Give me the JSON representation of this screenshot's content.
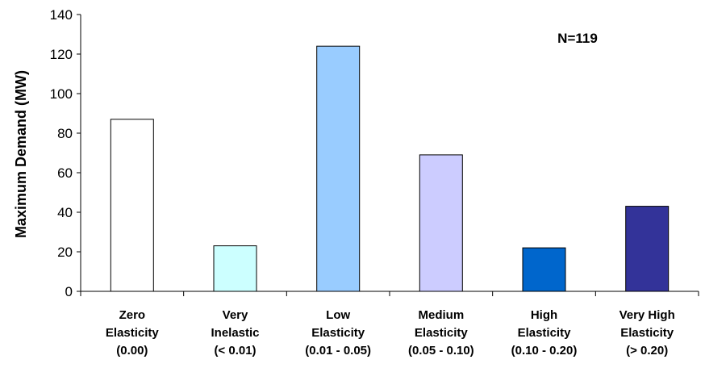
{
  "chart_data": {
    "type": "bar",
    "categories": [
      [
        "Zero",
        "Elasticity",
        "(0.00)"
      ],
      [
        "Very",
        "Inelastic",
        "(< 0.01)"
      ],
      [
        "Low",
        "Elasticity",
        "(0.01 - 0.05)"
      ],
      [
        "Medium",
        "Elasticity",
        "(0.05 - 0.10)"
      ],
      [
        "High",
        "Elasticity",
        "(0.10 - 0.20)"
      ],
      [
        "Very High",
        "Elasticity",
        "(> 0.20)"
      ]
    ],
    "values": [
      87,
      23,
      124,
      69,
      22,
      43
    ],
    "colors": [
      "#FFFFFF",
      "#CCFFFF",
      "#99CCFF",
      "#CCCCFF",
      "#0066CC",
      "#333399"
    ],
    "xlabel": "",
    "ylabel": "Maximum Demand  (MW)",
    "ylim": [
      0,
      140
    ],
    "yticks": [
      "0",
      "20",
      "40",
      "60",
      "80",
      "100",
      "120",
      "140"
    ],
    "grid": false,
    "annotation": "N=119"
  }
}
